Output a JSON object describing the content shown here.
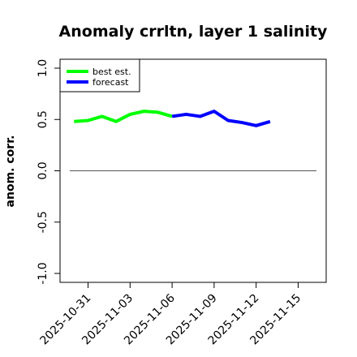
{
  "chart_data": {
    "type": "line",
    "title": "Anomaly crrltn, layer 1 salinity",
    "ylabel": "anom. corr.",
    "xlabel": "",
    "ylim": [
      -1.0,
      1.0
    ],
    "y_ticks": [
      "-1.0",
      "-0.5",
      "0.0",
      "0.5",
      "1.0"
    ],
    "x_range": [
      "2025-10-29",
      "2025-11-17"
    ],
    "x_tick_labels": [
      "2025-10-31",
      "2025-11-03",
      "2025-11-06",
      "2025-11-09",
      "2025-11-12",
      "2025-11-15"
    ],
    "highlighted_tick": "2025-11-06",
    "highlight_color": "#228b22",
    "reference_line": 0.0,
    "legend": {
      "position": "top-left",
      "entries": [
        {
          "label": "best est.",
          "color": "#00ff00"
        },
        {
          "label": "forecast",
          "color": "#0000ff"
        }
      ]
    },
    "series": [
      {
        "name": "best est.",
        "color": "#00ff00",
        "x": [
          "2025-10-30",
          "2025-10-31",
          "2025-11-01",
          "2025-11-02",
          "2025-11-03",
          "2025-11-04",
          "2025-11-05",
          "2025-11-06"
        ],
        "y": [
          0.48,
          0.49,
          0.53,
          0.48,
          0.55,
          0.58,
          0.57,
          0.53
        ]
      },
      {
        "name": "forecast",
        "color": "#0000ff",
        "x": [
          "2025-11-06",
          "2025-11-07",
          "2025-11-08",
          "2025-11-09",
          "2025-11-10",
          "2025-11-11",
          "2025-11-12",
          "2025-11-13"
        ],
        "y": [
          0.53,
          0.55,
          0.53,
          0.58,
          0.49,
          0.47,
          0.44,
          0.48
        ]
      }
    ]
  }
}
